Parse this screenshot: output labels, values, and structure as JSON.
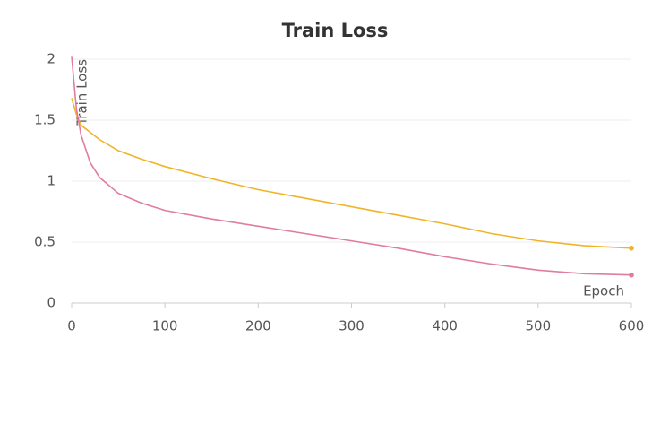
{
  "chart_data": {
    "type": "line",
    "title": "Train Loss",
    "y_label": "Train Loss",
    "x_label": "Epoch",
    "x": [
      0,
      5,
      10,
      20,
      30,
      50,
      75,
      100,
      150,
      200,
      250,
      300,
      350,
      400,
      450,
      500,
      550,
      600
    ],
    "series": [
      {
        "color": "#f0b429",
        "values": [
          1.68,
          1.55,
          1.46,
          1.4,
          1.34,
          1.25,
          1.18,
          1.12,
          1.02,
          0.93,
          0.86,
          0.79,
          0.72,
          0.65,
          0.57,
          0.51,
          0.47,
          0.45
        ]
      },
      {
        "color": "#e07ca0",
        "values": [
          2.02,
          1.6,
          1.38,
          1.15,
          1.03,
          0.9,
          0.82,
          0.76,
          0.69,
          0.63,
          0.57,
          0.51,
          0.45,
          0.38,
          0.32,
          0.27,
          0.24,
          0.23
        ]
      }
    ],
    "xlim": [
      0,
      600
    ],
    "xticks": [
      0,
      100,
      200,
      300,
      400,
      500,
      600
    ],
    "ylim": [
      0,
      2
    ],
    "yticks": [
      0,
      0.5,
      1,
      1.5,
      2
    ],
    "grid": true
  }
}
